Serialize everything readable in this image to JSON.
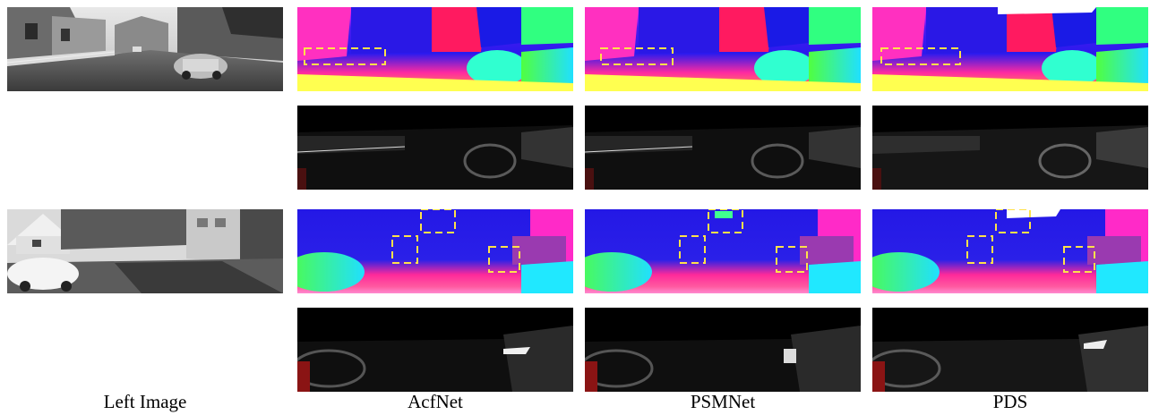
{
  "columns": [
    {
      "label": "Left Image"
    },
    {
      "label": "AcfNet"
    },
    {
      "label": "PSMNet"
    },
    {
      "label": "PDS"
    }
  ],
  "colors": {
    "highlight_box": "#ffe14a",
    "disparity_far": "#1414e6",
    "disparity_near": "#ffff40",
    "error_background": "#0a0a0a"
  }
}
